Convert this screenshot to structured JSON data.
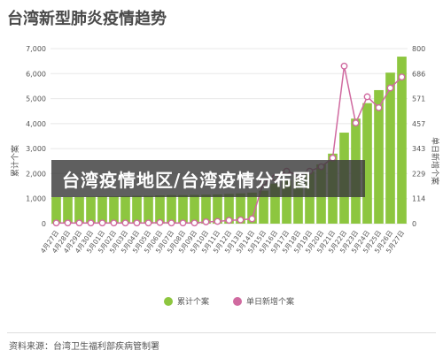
{
  "title": "台湾新型肺炎疫情趋势",
  "overlay_text": "台湾疫情地区/台湾疫情分布图",
  "source": "资料来源：台湾卫生福利部疾病管制署",
  "colors": {
    "bar": "#8dc63f",
    "line": "#d06aa0",
    "grid": "#e8e8e8",
    "axis_text": "#555555"
  },
  "chart_data": {
    "type": "bar",
    "categories": [
      "4月27日",
      "4月28日",
      "4月29日",
      "4月30日",
      "5月01日",
      "5月02日",
      "5月03日",
      "5月04日",
      "5月05日",
      "5月06日",
      "5月07日",
      "5月08日",
      "5月09日",
      "5月10日",
      "5月11日",
      "5月12日",
      "5月13日",
      "5月14日",
      "5月15日",
      "5月16日",
      "5月17日",
      "5月18日",
      "5月19日",
      "5月20日",
      "5月21日",
      "5月22日",
      "5月23日",
      "5月24日",
      "5月25日",
      "5月26日",
      "5月27日"
    ],
    "series": [
      {
        "name": "累计个案",
        "type": "bar",
        "axis": "left",
        "values": [
          1060,
          1070,
          1070,
          1080,
          1090,
          1090,
          1100,
          1110,
          1110,
          1130,
          1140,
          1140,
          1150,
          1160,
          1170,
          1190,
          1210,
          1240,
          1320,
          1600,
          1720,
          1950,
          2090,
          2370,
          2800,
          3640,
          4200,
          4820,
          5340,
          6040,
          6680
        ]
      },
      {
        "name": "单日新增个案",
        "type": "line",
        "axis": "right",
        "values": [
          3,
          3,
          3,
          3,
          3,
          3,
          3,
          3,
          3,
          5,
          3,
          3,
          3,
          8,
          10,
          15,
          17,
          22,
          190,
          210,
          240,
          220,
          240,
          260,
          300,
          720,
          460,
          580,
          530,
          620,
          670
        ]
      }
    ],
    "ylabel_left": "累计个案",
    "ylabel_right": "单日新增个案",
    "ylim_left": [
      0,
      7000
    ],
    "yticks_left": [
      "0",
      "1,000",
      "2,000",
      "3,000",
      "4,000",
      "5,000",
      "6,000",
      "7,000"
    ],
    "ylim_right": [
      0,
      800
    ],
    "yticks_right": [
      "0",
      "114",
      "229",
      "343",
      "457",
      "571",
      "686",
      "800"
    ],
    "grid": true,
    "legend": "bottom-center"
  }
}
